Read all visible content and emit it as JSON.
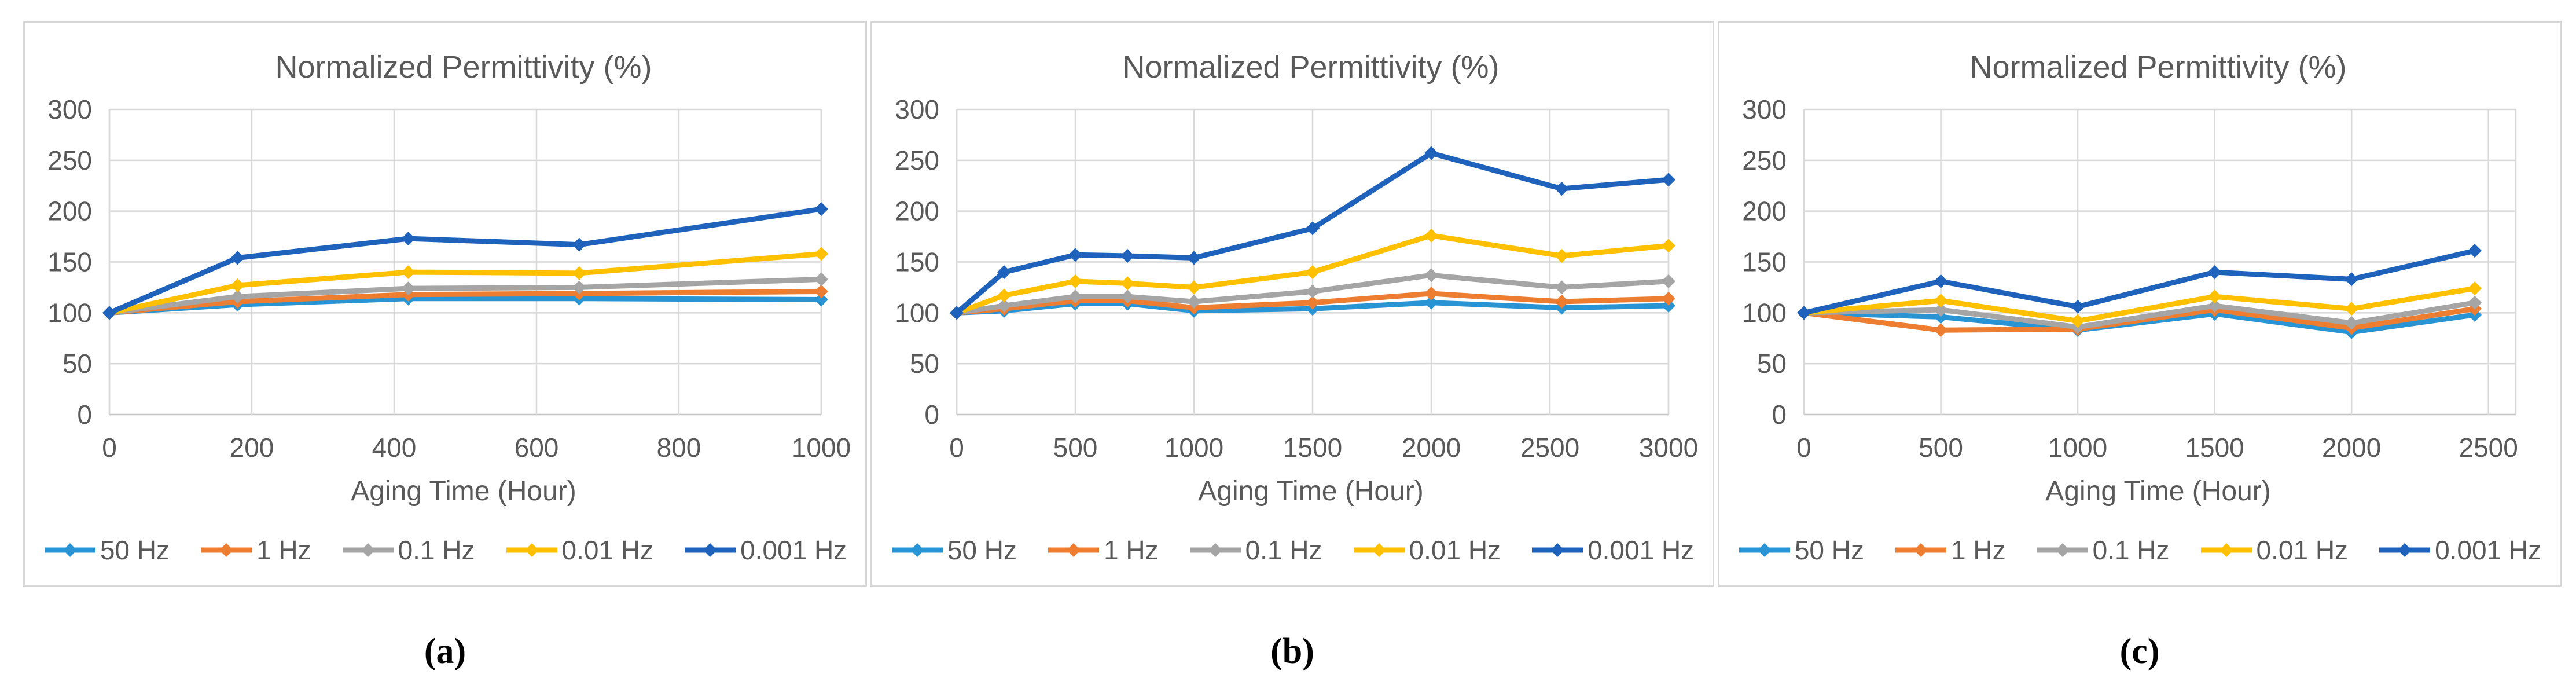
{
  "figure": {
    "series_labels": [
      "50 Hz",
      "1 Hz",
      "0.1 Hz",
      "0.01 Hz",
      "0.001 Hz"
    ],
    "series_colors": [
      "#2994D4",
      "#ED7D31",
      "#A5A5A5",
      "#FFC000",
      "#1F62BC"
    ],
    "panel_labels": [
      "(a)",
      "(b)",
      "(c)"
    ],
    "text_color": "#595959",
    "grid_color": "#D9D9D9",
    "axis_color": "#C3C3C3",
    "panel_border_color": "#D6D6D6",
    "background": "#FFFFFF"
  },
  "chart_data": [
    {
      "type": "line",
      "title": "Normalized Permittivity (%)",
      "xlabel": "Aging Time (Hour)",
      "ylabel": "",
      "grid": true,
      "legend_position": "bottom",
      "ylim": [
        0,
        300
      ],
      "yticks": [
        0,
        50,
        100,
        150,
        200,
        250,
        300
      ],
      "xlim": [
        0,
        1000
      ],
      "xticks": [
        0,
        200,
        400,
        600,
        800,
        1000
      ],
      "x": [
        0,
        180,
        420,
        660,
        1000
      ],
      "series": [
        {
          "name": "50 Hz",
          "values": [
            100,
            108,
            114,
            114,
            113
          ]
        },
        {
          "name": "1 Hz",
          "values": [
            100,
            111,
            118,
            119,
            121
          ]
        },
        {
          "name": "0.1 Hz",
          "values": [
            100,
            116,
            124,
            125,
            133
          ]
        },
        {
          "name": "0.01 Hz",
          "values": [
            100,
            127,
            140,
            139,
            158
          ]
        },
        {
          "name": "0.001 Hz",
          "values": [
            100,
            154,
            173,
            167,
            202
          ]
        }
      ]
    },
    {
      "type": "line",
      "title": "Normalized Permittivity (%)",
      "xlabel": "Aging Time (Hour)",
      "ylabel": "",
      "grid": true,
      "legend_position": "bottom",
      "ylim": [
        0,
        300
      ],
      "yticks": [
        0,
        50,
        100,
        150,
        200,
        250,
        300
      ],
      "xlim": [
        0,
        3000
      ],
      "xticks": [
        0,
        500,
        1000,
        1500,
        2000,
        2500,
        3000
      ],
      "x": [
        0,
        200,
        500,
        720,
        1000,
        1500,
        2000,
        2550,
        3000
      ],
      "series": [
        {
          "name": "50 Hz",
          "values": [
            100,
            102,
            109,
            109,
            102,
            104,
            110,
            105,
            107
          ]
        },
        {
          "name": "1 Hz",
          "values": [
            100,
            104,
            112,
            112,
            105,
            110,
            119,
            111,
            114
          ]
        },
        {
          "name": "0.1 Hz",
          "values": [
            100,
            107,
            116,
            116,
            111,
            121,
            137,
            125,
            131
          ]
        },
        {
          "name": "0.01 Hz",
          "values": [
            100,
            117,
            131,
            129,
            125,
            140,
            176,
            156,
            166
          ]
        },
        {
          "name": "0.001 Hz",
          "values": [
            100,
            140,
            157,
            156,
            154,
            183,
            257,
            222,
            231
          ]
        }
      ]
    },
    {
      "type": "line",
      "title": "Normalized Permittivity (%)",
      "xlabel": "Aging Time (Hour)",
      "ylabel": "",
      "grid": true,
      "legend_position": "bottom",
      "ylim": [
        0,
        300
      ],
      "yticks": [
        0,
        50,
        100,
        150,
        200,
        250,
        300
      ],
      "xlim": [
        0,
        2600
      ],
      "xticks": [
        0,
        500,
        1000,
        1500,
        2000,
        2500
      ],
      "x": [
        0,
        500,
        1000,
        1500,
        2000,
        2450
      ],
      "series": [
        {
          "name": "50 Hz",
          "values": [
            100,
            96,
            83,
            99,
            81,
            98
          ]
        },
        {
          "name": "1 Hz",
          "values": [
            100,
            83,
            84,
            103,
            85,
            104
          ]
        },
        {
          "name": "0.1 Hz",
          "values": [
            100,
            103,
            86,
            107,
            90,
            110
          ]
        },
        {
          "name": "0.01 Hz",
          "values": [
            100,
            112,
            92,
            116,
            104,
            124
          ]
        },
        {
          "name": "0.001 Hz",
          "values": [
            100,
            131,
            106,
            140,
            133,
            161
          ]
        }
      ]
    }
  ]
}
